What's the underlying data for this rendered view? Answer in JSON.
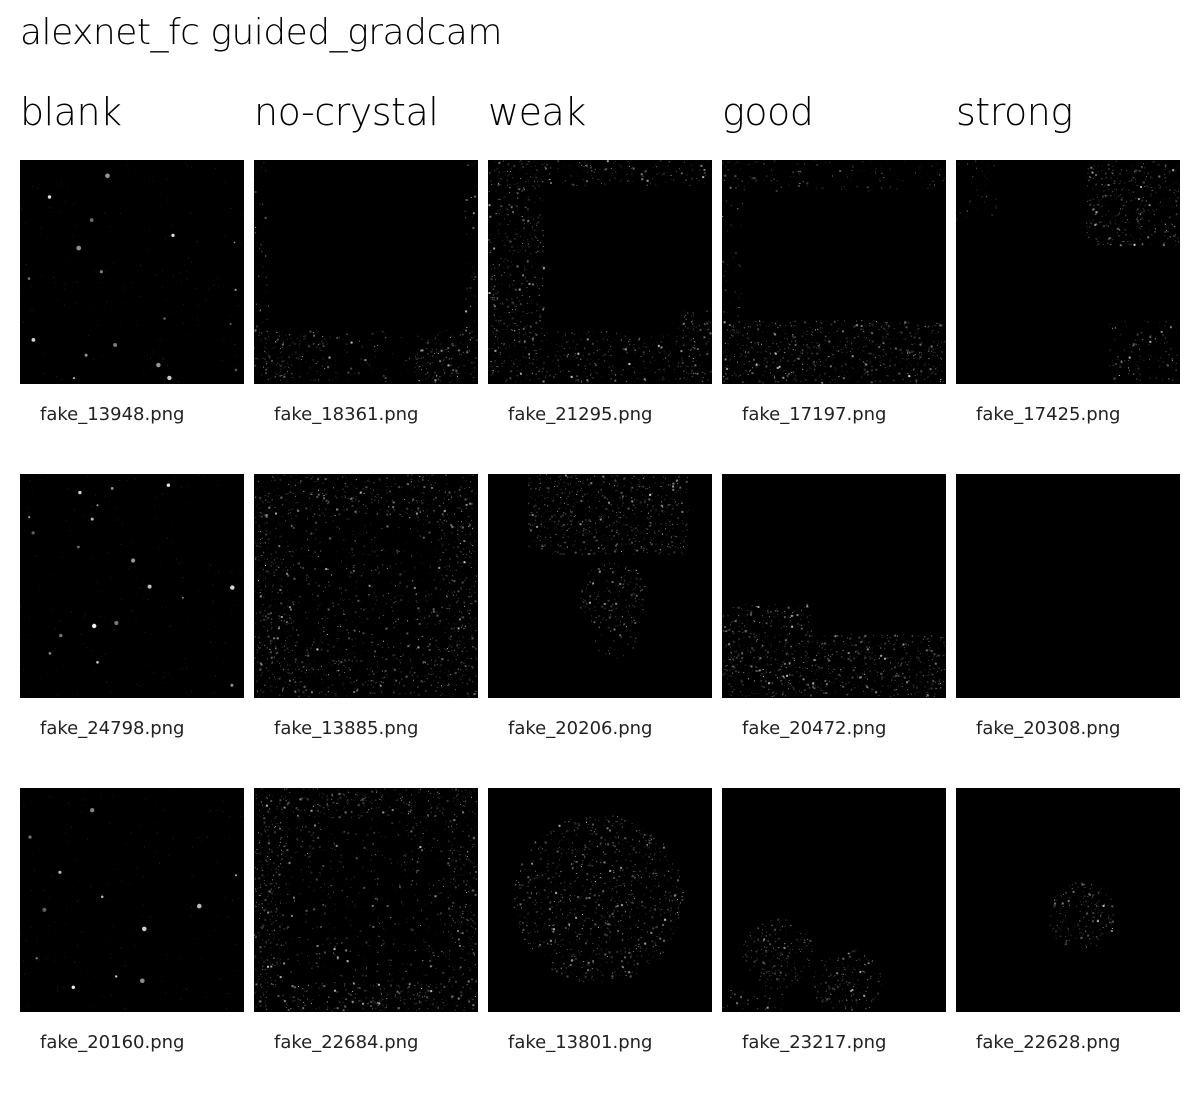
{
  "title": "alexnet_fc guided_gradcam",
  "columns": [
    {
      "label": "blank"
    },
    {
      "label": "no-crystal"
    },
    {
      "label": "weak"
    },
    {
      "label": "good"
    },
    {
      "label": "strong"
    }
  ],
  "rows": [
    [
      {
        "file": "fake_13948.png",
        "pattern": "spots"
      },
      {
        "file": "fake_18361.png",
        "pattern": "bottom"
      },
      {
        "file": "fake_21295.png",
        "pattern": "left-frame"
      },
      {
        "file": "fake_17197.png",
        "pattern": "bottom-band"
      },
      {
        "file": "fake_17425.png",
        "pattern": "top-right"
      }
    ],
    [
      {
        "file": "fake_24798.png",
        "pattern": "spots"
      },
      {
        "file": "fake_13885.png",
        "pattern": "frame"
      },
      {
        "file": "fake_20206.png",
        "pattern": "top-center"
      },
      {
        "file": "fake_20472.png",
        "pattern": "bottom-left"
      },
      {
        "file": "fake_20308.png",
        "pattern": "empty"
      }
    ],
    [
      {
        "file": "fake_20160.png",
        "pattern": "spots-sparse"
      },
      {
        "file": "fake_22684.png",
        "pattern": "frame-strong"
      },
      {
        "file": "fake_13801.png",
        "pattern": "center"
      },
      {
        "file": "fake_23217.png",
        "pattern": "bottom-blobs"
      },
      {
        "file": "fake_22628.png",
        "pattern": "center-right-blob"
      }
    ]
  ],
  "colors": {
    "tile_bg": "#000000",
    "highlight": "#ffffff"
  }
}
